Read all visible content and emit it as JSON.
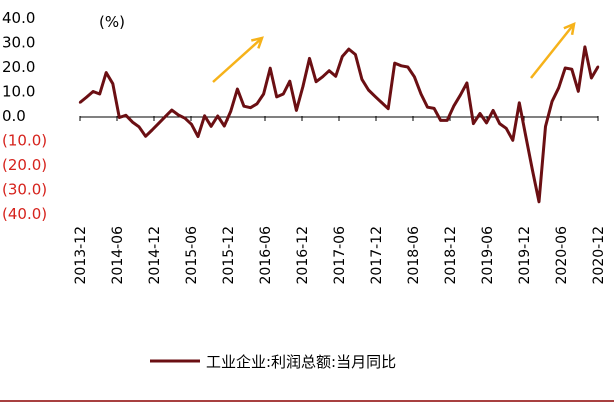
{
  "chart_data": {
    "type": "line",
    "title": "",
    "unit_label": "(%)",
    "ylim": [
      -40,
      40
    ],
    "yticks": [
      40,
      30,
      20,
      10,
      0,
      -10,
      -20,
      -30,
      -40
    ],
    "ytick_labels": [
      "40.0",
      "30.0",
      "20.0",
      "10.0",
      "0.0",
      "(10.0)",
      "(20.0)",
      "(30.0)",
      "(40.0)"
    ],
    "xtick_labels": [
      "2013-12",
      "2014-06",
      "2014-12",
      "2015-06",
      "2015-12",
      "2016-06",
      "2016-12",
      "2017-06",
      "2017-12",
      "2018-06",
      "2018-12",
      "2019-06",
      "2019-12",
      "2020-06",
      "2020-12"
    ],
    "series": [
      {
        "name": "工业企业:利润总额:当月同比",
        "color": "#6b0f13",
        "values": [
          5.5,
          7.7,
          10.0,
          9.0,
          17.7,
          13.2,
          -0.6,
          0.3,
          -2.5,
          -4.4,
          -8.3,
          -5.7,
          -3.0,
          -0.3,
          2.4,
          0.4,
          -0.9,
          -3.4,
          -8.4,
          0.1,
          -4.2,
          0.0,
          -4.1,
          2.0,
          11.0,
          4.0,
          3.4,
          5.0,
          9.0,
          19.5,
          7.8,
          9.0,
          14.2,
          2.3,
          12.0,
          23.5,
          14.0,
          16.0,
          18.5,
          16.2,
          24.3,
          27.3,
          25.1,
          15.0,
          10.6,
          8.0,
          5.5,
          3.0,
          21.6,
          20.5,
          20.0,
          16.0,
          9.0,
          3.6,
          3.1,
          -1.8,
          -1.8,
          4.0,
          8.5,
          13.5,
          -3.1,
          1.0,
          -2.8,
          2.3,
          -3.1,
          -5.0,
          -9.9,
          5.4,
          -8.5,
          -22.0,
          -35.0,
          -4.3,
          6.0,
          11.5,
          19.6,
          19.1,
          10.1,
          28.2,
          15.5,
          20.1
        ]
      }
    ],
    "annotations": [
      {
        "type": "arrow",
        "direction": "up-right",
        "color": "#f6b21a"
      },
      {
        "type": "arrow",
        "direction": "up-right",
        "color": "#f6b21a"
      }
    ],
    "colors": {
      "line": "#6b0f13",
      "negative_tick": "#d6231d",
      "positive_tick": "#000000",
      "arrow": "#f6b21a",
      "footer_rule": "#8b0000"
    }
  }
}
